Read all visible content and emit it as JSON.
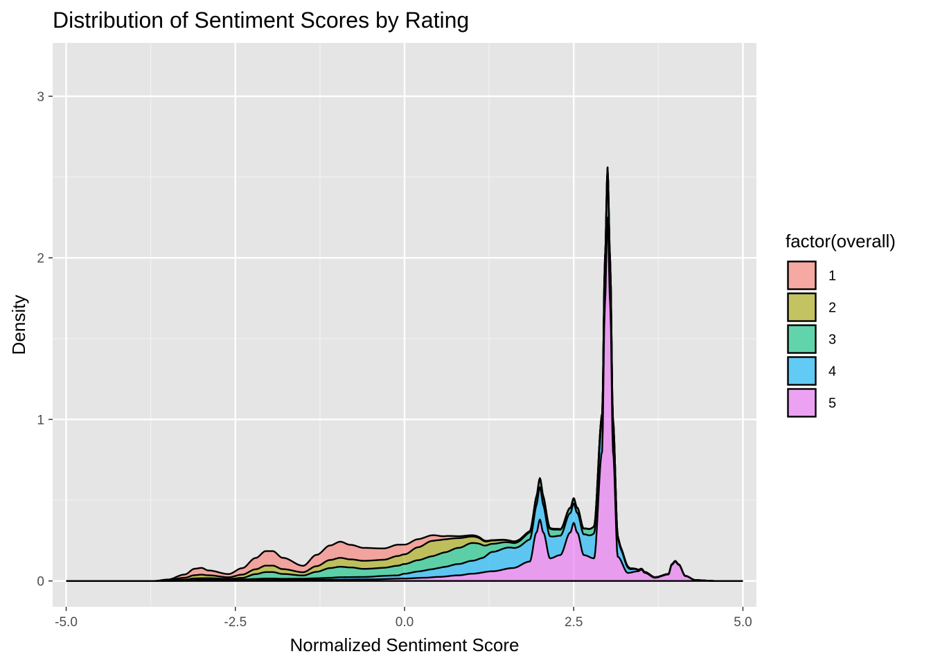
{
  "chart_data": {
    "type": "area",
    "title": "Distribution of Sentiment Scores by Rating",
    "xlabel": "Normalized Sentiment Score",
    "ylabel": "Density",
    "xlim": [
      -5.2,
      5.2
    ],
    "ylim": [
      -0.16,
      3.33
    ],
    "x_ticks": [
      -5.0,
      -2.5,
      0.0,
      2.5,
      5.0
    ],
    "x_tick_labels": [
      "-5.0",
      "-2.5",
      "0.0",
      "2.5",
      "5.0"
    ],
    "y_ticks": [
      0,
      1,
      2,
      3
    ],
    "y_tick_labels": [
      "0",
      "1",
      "2",
      "3"
    ],
    "grid": true,
    "stacked": true,
    "legend": {
      "title": "factor(overall)",
      "placement": "right",
      "entries": [
        "1",
        "2",
        "3",
        "4",
        "5"
      ]
    },
    "series": [
      {
        "name": "1",
        "color": "#F8766D",
        "points": [
          [
            -5,
            0
          ],
          [
            -3.7,
            0
          ],
          [
            -3.5,
            0.003
          ],
          [
            -3.25,
            0.02
          ],
          [
            -3.1,
            0.04
          ],
          [
            -3,
            0.042
          ],
          [
            -2.9,
            0.03
          ],
          [
            -2.6,
            0.02
          ],
          [
            -2.4,
            0.04
          ],
          [
            -2.2,
            0.07
          ],
          [
            -2.05,
            0.09
          ],
          [
            -1.95,
            0.09
          ],
          [
            -1.8,
            0.07
          ],
          [
            -1.5,
            0.04
          ],
          [
            -1.3,
            0.07
          ],
          [
            -1.1,
            0.09
          ],
          [
            -0.95,
            0.1
          ],
          [
            -0.8,
            0.09
          ],
          [
            -0.6,
            0.08
          ],
          [
            -0.3,
            0.07
          ],
          [
            -0.1,
            0.07
          ],
          [
            0,
            0.06
          ],
          [
            0.2,
            0.05
          ],
          [
            0.4,
            0.035
          ],
          [
            0.6,
            0.02
          ],
          [
            0.8,
            0.012
          ],
          [
            1,
            0.008
          ],
          [
            1.3,
            0.003
          ],
          [
            1.6,
            0.001
          ],
          [
            2,
            0.002
          ],
          [
            2.5,
            0.001
          ],
          [
            3,
            0
          ],
          [
            5,
            0
          ]
        ]
      },
      {
        "name": "2",
        "color": "#A3A500",
        "points": [
          [
            -5,
            0
          ],
          [
            -3.7,
            0
          ],
          [
            -3.5,
            0.003
          ],
          [
            -3.25,
            0.012
          ],
          [
            -3.1,
            0.02
          ],
          [
            -3,
            0.022
          ],
          [
            -2.9,
            0.018
          ],
          [
            -2.6,
            0.01
          ],
          [
            -2.4,
            0.02
          ],
          [
            -2.2,
            0.03
          ],
          [
            -2.05,
            0.04
          ],
          [
            -1.95,
            0.04
          ],
          [
            -1.8,
            0.03
          ],
          [
            -1.5,
            0.02
          ],
          [
            -1.3,
            0.035
          ],
          [
            -1.1,
            0.05
          ],
          [
            -0.95,
            0.055
          ],
          [
            -0.8,
            0.05
          ],
          [
            -0.6,
            0.05
          ],
          [
            -0.3,
            0.05
          ],
          [
            -0.1,
            0.06
          ],
          [
            0,
            0.06
          ],
          [
            0.2,
            0.08
          ],
          [
            0.4,
            0.095
          ],
          [
            0.6,
            0.08
          ],
          [
            0.8,
            0.06
          ],
          [
            1,
            0.04
          ],
          [
            1.3,
            0.02
          ],
          [
            1.6,
            0.01
          ],
          [
            2,
            0.005
          ],
          [
            2.5,
            0.002
          ],
          [
            3,
            0
          ],
          [
            5,
            0
          ]
        ]
      },
      {
        "name": "3",
        "color": "#00BF7D",
        "points": [
          [
            -5,
            0
          ],
          [
            -3.7,
            0
          ],
          [
            -3.5,
            0.002
          ],
          [
            -3.25,
            0.005
          ],
          [
            -3.1,
            0.01
          ],
          [
            -3,
            0.01
          ],
          [
            -2.9,
            0.01
          ],
          [
            -2.6,
            0.005
          ],
          [
            -2.4,
            0.01
          ],
          [
            -2.2,
            0.03
          ],
          [
            -2.05,
            0.04
          ],
          [
            -1.95,
            0.04
          ],
          [
            -1.8,
            0.03
          ],
          [
            -1.5,
            0.02
          ],
          [
            -1.3,
            0.04
          ],
          [
            -1.1,
            0.06
          ],
          [
            -0.95,
            0.065
          ],
          [
            -0.8,
            0.06
          ],
          [
            -0.6,
            0.05
          ],
          [
            -0.3,
            0.05
          ],
          [
            -0.1,
            0.06
          ],
          [
            0,
            0.06
          ],
          [
            0.2,
            0.07
          ],
          [
            0.4,
            0.08
          ],
          [
            0.6,
            0.09
          ],
          [
            0.8,
            0.1
          ],
          [
            1,
            0.11
          ],
          [
            1.3,
            0.05
          ],
          [
            1.6,
            0.03
          ],
          [
            2,
            0.05
          ],
          [
            2.5,
            0.03
          ],
          [
            3,
            0.05
          ],
          [
            3.2,
            0.01
          ],
          [
            3.5,
            0
          ],
          [
            5,
            0
          ]
        ]
      },
      {
        "name": "4",
        "color": "#00B0F6",
        "points": [
          [
            -5,
            0
          ],
          [
            -3.7,
            0
          ],
          [
            -3.5,
            0.001
          ],
          [
            -3.25,
            0.002
          ],
          [
            -3.1,
            0.004
          ],
          [
            -3,
            0.005
          ],
          [
            -2.9,
            0.005
          ],
          [
            -2.6,
            0.005
          ],
          [
            -2.4,
            0.006
          ],
          [
            -2.2,
            0.008
          ],
          [
            -2.05,
            0.01
          ],
          [
            -1.95,
            0.01
          ],
          [
            -1.8,
            0.008
          ],
          [
            -1.5,
            0.008
          ],
          [
            -1.3,
            0.01
          ],
          [
            -1.1,
            0.012
          ],
          [
            -0.95,
            0.015
          ],
          [
            -0.8,
            0.015
          ],
          [
            -0.6,
            0.015
          ],
          [
            -0.3,
            0.02
          ],
          [
            -0.1,
            0.02
          ],
          [
            0,
            0.03
          ],
          [
            0.2,
            0.04
          ],
          [
            0.4,
            0.05
          ],
          [
            0.6,
            0.06
          ],
          [
            0.8,
            0.07
          ],
          [
            1,
            0.08
          ],
          [
            1.15,
            0.09
          ],
          [
            1.3,
            0.12
          ],
          [
            1.5,
            0.13
          ],
          [
            1.7,
            0.12
          ],
          [
            1.9,
            0.14
          ],
          [
            2,
            0.2
          ],
          [
            2.1,
            0.14
          ],
          [
            2.3,
            0.12
          ],
          [
            2.5,
            0.12
          ],
          [
            2.7,
            0.13
          ],
          [
            2.9,
            0.18
          ],
          [
            3,
            0.26
          ],
          [
            3.1,
            0.16
          ],
          [
            3.2,
            0.07
          ],
          [
            3.35,
            0.02
          ],
          [
            3.5,
            0.006
          ],
          [
            3.8,
            0.003
          ],
          [
            4,
            0.004
          ],
          [
            4.2,
            0.001
          ],
          [
            4.5,
            0
          ],
          [
            5,
            0
          ]
        ]
      },
      {
        "name": "5",
        "color": "#E76BF3",
        "points": [
          [
            -5,
            0
          ],
          [
            -3.7,
            0
          ],
          [
            -3.5,
            0
          ],
          [
            -3,
            0.002
          ],
          [
            -2.5,
            0.003
          ],
          [
            -2,
            0.005
          ],
          [
            -1.5,
            0.006
          ],
          [
            -1,
            0.008
          ],
          [
            -0.5,
            0.01
          ],
          [
            0,
            0.015
          ],
          [
            0.3,
            0.02
          ],
          [
            0.5,
            0.025
          ],
          [
            0.8,
            0.035
          ],
          [
            1,
            0.045
          ],
          [
            1.3,
            0.06
          ],
          [
            1.6,
            0.08
          ],
          [
            1.85,
            0.12
          ],
          [
            1.95,
            0.3
          ],
          [
            2,
            0.38
          ],
          [
            2.05,
            0.3
          ],
          [
            2.15,
            0.14
          ],
          [
            2.3,
            0.16
          ],
          [
            2.45,
            0.3
          ],
          [
            2.5,
            0.36
          ],
          [
            2.55,
            0.3
          ],
          [
            2.65,
            0.16
          ],
          [
            2.8,
            0.14
          ],
          [
            2.92,
            0.8
          ],
          [
            2.96,
            1.7
          ],
          [
            3,
            2.25
          ],
          [
            3.04,
            1.7
          ],
          [
            3.08,
            0.8
          ],
          [
            3.15,
            0.15
          ],
          [
            3.3,
            0.05
          ],
          [
            3.45,
            0.06
          ],
          [
            3.5,
            0.07
          ],
          [
            3.55,
            0.05
          ],
          [
            3.7,
            0.02
          ],
          [
            3.9,
            0.04
          ],
          [
            3.95,
            0.1
          ],
          [
            4,
            0.12
          ],
          [
            4.05,
            0.1
          ],
          [
            4.15,
            0.03
          ],
          [
            4.3,
            0.005
          ],
          [
            4.6,
            0
          ],
          [
            5,
            0
          ]
        ]
      }
    ]
  }
}
